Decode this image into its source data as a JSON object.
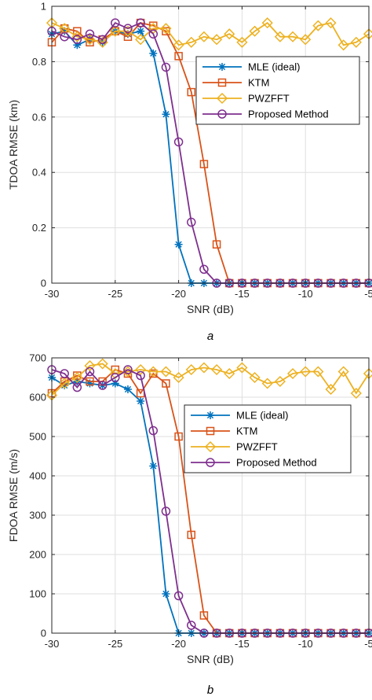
{
  "chart_data": [
    {
      "type": "line",
      "caption": "a",
      "xlabel": "SNR (dB)",
      "ylabel": "TDOA RMSE (km)",
      "xlim": [
        -30,
        -5
      ],
      "ylim": [
        0,
        1
      ],
      "xticks": [
        -30,
        -25,
        -20,
        -15,
        -10,
        -5
      ],
      "xtick_labels": [
        "-30",
        "-25",
        "-20",
        "-15",
        "-10",
        "-5"
      ],
      "yticks": [
        0,
        0.2,
        0.4,
        0.6,
        0.8,
        1
      ],
      "ytick_labels": [
        "0",
        "0.2",
        "0.4",
        "0.6",
        "0.8",
        "1"
      ],
      "grid": true,
      "legend_position": "upper-right",
      "x": [
        -30,
        -29,
        -28,
        -27,
        -26,
        -25,
        -24,
        -23,
        -22,
        -21,
        -20,
        -19,
        -18,
        -17,
        -16,
        -15,
        -14,
        -13,
        -12,
        -11,
        -10,
        -9,
        -8,
        -7,
        -6,
        -5
      ],
      "series": [
        {
          "name": "MLE (ideal)",
          "color": "#0072BD",
          "marker": "asterisk",
          "values": [
            0.9,
            0.91,
            0.86,
            0.88,
            0.87,
            0.91,
            0.9,
            0.91,
            0.83,
            0.61,
            0.14,
            0.0,
            0.0,
            0.0,
            0.0,
            0.0,
            0.0,
            0.0,
            0.0,
            0.0,
            0.0,
            0.0,
            0.0,
            0.0,
            0.0,
            0.0
          ]
        },
        {
          "name": "KTM",
          "color": "#D95319",
          "marker": "square",
          "values": [
            0.87,
            0.92,
            0.91,
            0.87,
            0.88,
            0.91,
            0.89,
            0.94,
            0.93,
            0.91,
            0.82,
            0.69,
            0.43,
            0.14,
            0.0,
            0.0,
            0.0,
            0.0,
            0.0,
            0.0,
            0.0,
            0.0,
            0.0,
            0.0,
            0.0,
            0.0
          ]
        },
        {
          "name": "PWZFFT",
          "color": "#EDB120",
          "marker": "diamond",
          "values": [
            0.94,
            0.92,
            0.89,
            0.88,
            0.87,
            0.91,
            0.91,
            0.88,
            0.92,
            0.92,
            0.86,
            0.87,
            0.89,
            0.88,
            0.9,
            0.87,
            0.91,
            0.94,
            0.89,
            0.89,
            0.88,
            0.93,
            0.94,
            0.86,
            0.87,
            0.9
          ]
        },
        {
          "name": "Proposed Method",
          "color": "#7E2F8E",
          "marker": "circle",
          "values": [
            0.91,
            0.89,
            0.88,
            0.9,
            0.88,
            0.94,
            0.92,
            0.94,
            0.9,
            0.78,
            0.51,
            0.22,
            0.05,
            0.0,
            0.0,
            0.0,
            0.0,
            0.0,
            0.0,
            0.0,
            0.0,
            0.0,
            0.0,
            0.0,
            0.0,
            0.0
          ]
        }
      ]
    },
    {
      "type": "line",
      "caption": "b",
      "xlabel": "SNR (dB)",
      "ylabel": "FDOA RMSE (m/s)",
      "xlim": [
        -30,
        -5
      ],
      "ylim": [
        0,
        700
      ],
      "xticks": [
        -30,
        -25,
        -20,
        -15,
        -10,
        -5
      ],
      "xtick_labels": [
        "-30",
        "-25",
        "-20",
        "-15",
        "-10",
        "-5"
      ],
      "yticks": [
        0,
        100,
        200,
        300,
        400,
        500,
        600,
        700
      ],
      "ytick_labels": [
        "0",
        "100",
        "200",
        "300",
        "400",
        "500",
        "600",
        "700"
      ],
      "grid": true,
      "legend_position": "center-right",
      "x": [
        -30,
        -29,
        -28,
        -27,
        -26,
        -25,
        -24,
        -23,
        -22,
        -21,
        -20,
        -19,
        -18,
        -17,
        -16,
        -15,
        -14,
        -13,
        -12,
        -11,
        -10,
        -9,
        -8,
        -7,
        -6,
        -5
      ],
      "series": [
        {
          "name": "MLE (ideal)",
          "color": "#0072BD",
          "marker": "asterisk",
          "values": [
            650,
            630,
            640,
            635,
            630,
            635,
            620,
            590,
            425,
            100,
            0,
            0,
            0,
            0,
            0,
            0,
            0,
            0,
            0,
            0,
            0,
            0,
            0,
            0,
            0,
            0
          ]
        },
        {
          "name": "KTM",
          "color": "#D95319",
          "marker": "square",
          "values": [
            610,
            640,
            655,
            640,
            640,
            670,
            660,
            610,
            660,
            635,
            500,
            250,
            45,
            0,
            0,
            0,
            0,
            0,
            0,
            0,
            0,
            0,
            0,
            0,
            0,
            0
          ]
        },
        {
          "name": "PWZFFT",
          "color": "#EDB120",
          "marker": "diamond",
          "values": [
            605,
            635,
            650,
            680,
            685,
            660,
            665,
            670,
            665,
            665,
            650,
            670,
            675,
            670,
            660,
            675,
            650,
            635,
            640,
            660,
            665,
            665,
            620,
            665,
            610,
            660
          ]
        },
        {
          "name": "Proposed Method",
          "color": "#7E2F8E",
          "marker": "circle",
          "values": [
            670,
            660,
            625,
            665,
            630,
            650,
            670,
            655,
            515,
            310,
            95,
            20,
            0,
            0,
            0,
            0,
            0,
            0,
            0,
            0,
            0,
            0,
            0,
            0,
            0,
            0
          ]
        }
      ]
    }
  ]
}
